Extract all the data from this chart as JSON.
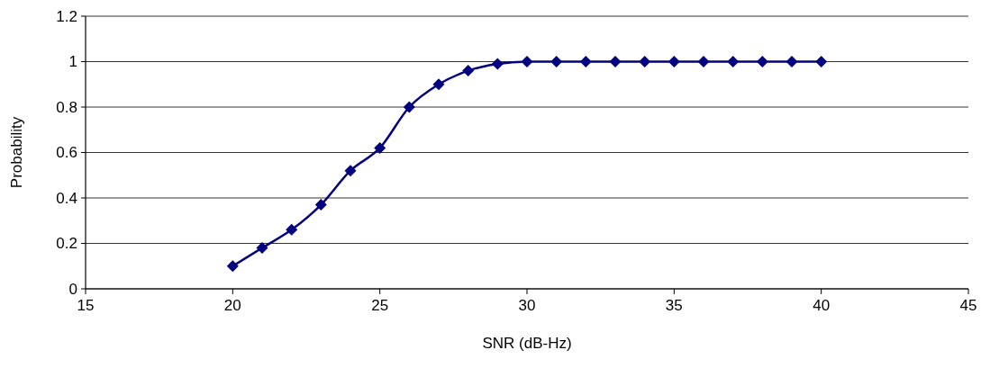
{
  "chart_data": {
    "type": "line",
    "xlabel": "SNR (dB-Hz)",
    "ylabel": "Probability",
    "x": [
      20,
      21,
      22,
      23,
      24,
      25,
      26,
      27,
      28,
      29,
      30,
      31,
      32,
      33,
      34,
      35,
      36,
      37,
      38,
      39,
      40
    ],
    "series": [
      {
        "color": "#000080",
        "values": [
          0.1,
          0.18,
          0.26,
          0.37,
          0.52,
          0.62,
          0.8,
          0.9,
          0.96,
          0.99,
          1,
          1,
          1,
          1,
          1,
          1,
          1,
          1,
          1,
          1,
          1
        ]
      }
    ],
    "xlim": [
      15,
      45
    ],
    "xticks": [
      15,
      20,
      25,
      30,
      35,
      40,
      45
    ],
    "ylim": [
      0,
      1.2
    ],
    "yticks": [
      0,
      {
        "value": 0.2,
        "label": "0.2"
      },
      {
        "value": 0.4,
        "label": "0.4"
      },
      {
        "value": 0.6,
        "label": "0.6"
      },
      {
        "value": 0.8,
        "label": "0.8"
      },
      1,
      {
        "value": 1.2,
        "label": "1.2"
      }
    ],
    "grid": "y",
    "marker": "diamond",
    "line_style": "solid"
  }
}
